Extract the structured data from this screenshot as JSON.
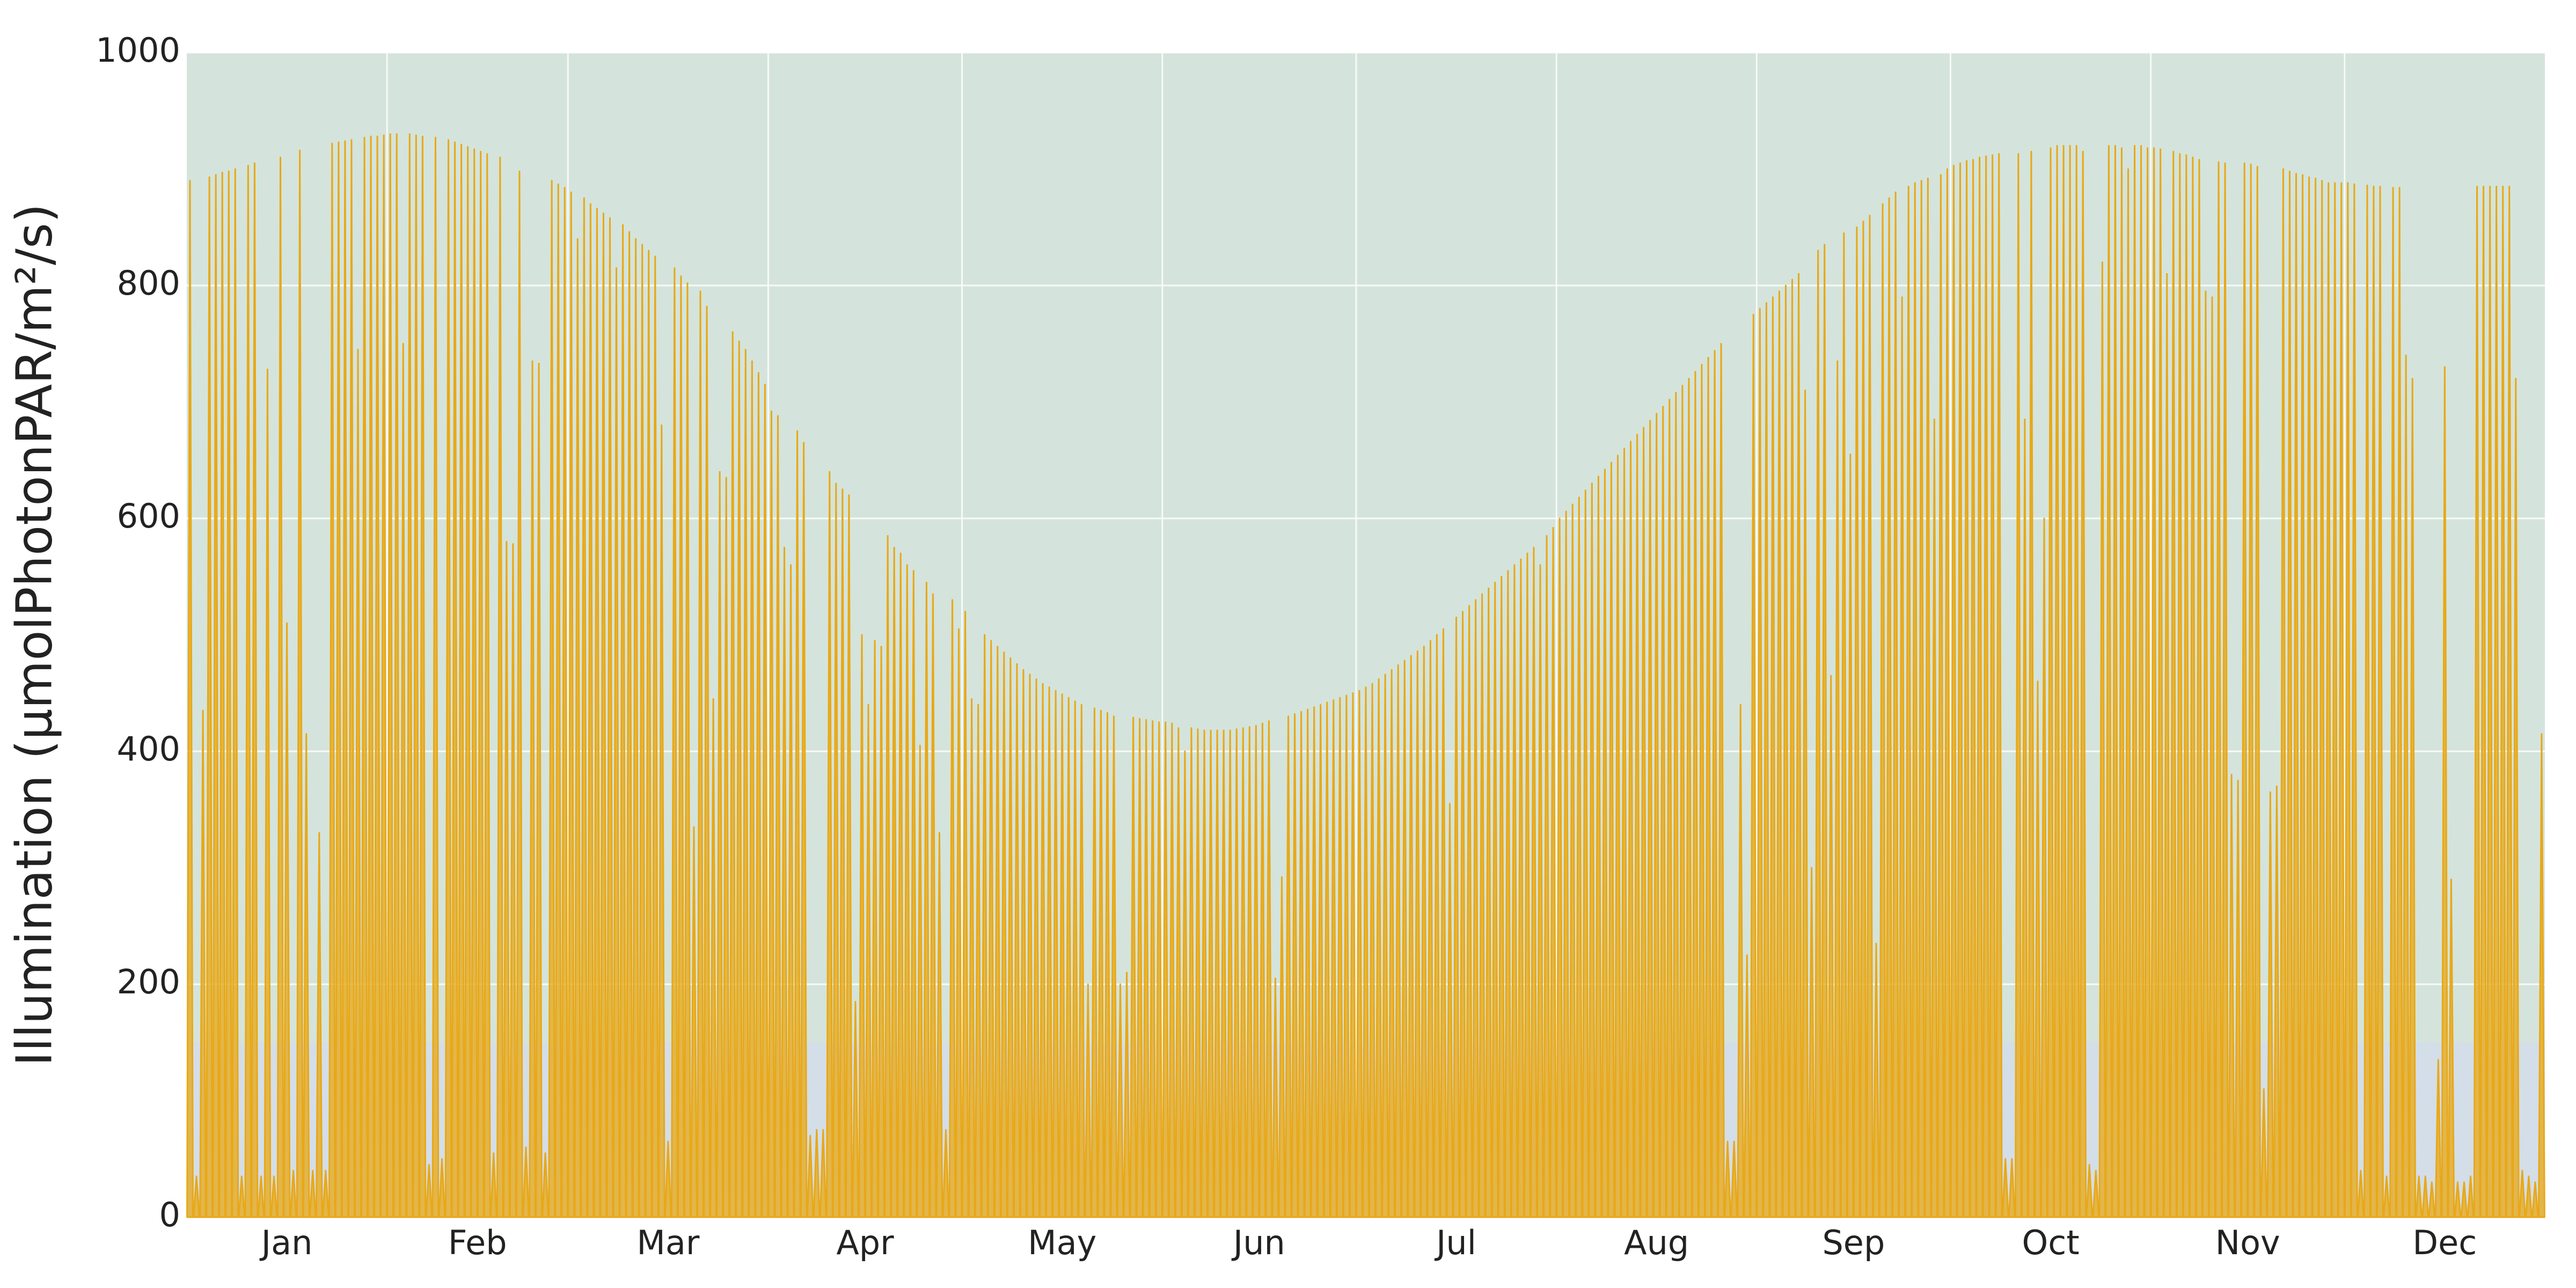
{
  "chart_data": {
    "type": "spike",
    "y_label": "Illumination (µmolPhotonPAR/m²/s)",
    "color": "#e8a817",
    "xlim": [
      0.5,
      365.5
    ],
    "ylim": [
      0,
      1000
    ],
    "yticks": [
      0,
      200,
      400,
      600,
      800,
      1000
    ],
    "xticks": [
      {
        "value": 16,
        "label": "Jan"
      },
      {
        "value": 45.5,
        "label": "Feb"
      },
      {
        "value": 75,
        "label": "Mar"
      },
      {
        "value": 105.5,
        "label": "Apr"
      },
      {
        "value": 136,
        "label": "May"
      },
      {
        "value": 166.5,
        "label": "Jun"
      },
      {
        "value": 197,
        "label": "Jul"
      },
      {
        "value": 228,
        "label": "Aug"
      },
      {
        "value": 258.5,
        "label": "Sep"
      },
      {
        "value": 289,
        "label": "Oct"
      },
      {
        "value": 319.5,
        "label": "Nov"
      },
      {
        "value": 350,
        "label": "Dec"
      }
    ],
    "xgrid": [
      31.5,
      59.5,
      90.5,
      120.5,
      151.5,
      181.5,
      212.5,
      243.5,
      273.5,
      304.5,
      334.5
    ],
    "grid": true,
    "bands": [
      {
        "from": 150,
        "to": 1000,
        "color": "#d4e4dc"
      },
      {
        "from": 0,
        "to": 150,
        "color": "#d3dee9"
      }
    ],
    "x": [
      1,
      2,
      3,
      4,
      5,
      6,
      7,
      8,
      9,
      10,
      11,
      12,
      13,
      14,
      15,
      16,
      17,
      18,
      19,
      20,
      21,
      22,
      23,
      24,
      25,
      26,
      27,
      28,
      29,
      30,
      31,
      32,
      33,
      34,
      35,
      36,
      37,
      38,
      39,
      40,
      41,
      42,
      43,
      44,
      45,
      46,
      47,
      48,
      49,
      50,
      51,
      52,
      53,
      54,
      55,
      56,
      57,
      58,
      59,
      60,
      61,
      62,
      63,
      64,
      65,
      66,
      67,
      68,
      69,
      70,
      71,
      72,
      73,
      74,
      75,
      76,
      77,
      78,
      79,
      80,
      81,
      82,
      83,
      84,
      85,
      86,
      87,
      88,
      89,
      90,
      91,
      92,
      93,
      94,
      95,
      96,
      97,
      98,
      99,
      100,
      101,
      102,
      103,
      104,
      105,
      106,
      107,
      108,
      109,
      110,
      111,
      112,
      113,
      114,
      115,
      116,
      117,
      118,
      119,
      120,
      121,
      122,
      123,
      124,
      125,
      126,
      127,
      128,
      129,
      130,
      131,
      132,
      133,
      134,
      135,
      136,
      137,
      138,
      139,
      140,
      141,
      142,
      143,
      144,
      145,
      146,
      147,
      148,
      149,
      150,
      151,
      152,
      153,
      154,
      155,
      156,
      157,
      158,
      159,
      160,
      161,
      162,
      163,
      164,
      165,
      166,
      167,
      168,
      169,
      170,
      171,
      172,
      173,
      174,
      175,
      176,
      177,
      178,
      179,
      180,
      181,
      182,
      183,
      184,
      185,
      186,
      187,
      188,
      189,
      190,
      191,
      192,
      193,
      194,
      195,
      196,
      197,
      198,
      199,
      200,
      201,
      202,
      203,
      204,
      205,
      206,
      207,
      208,
      209,
      210,
      211,
      212,
      213,
      214,
      215,
      216,
      217,
      218,
      219,
      220,
      221,
      222,
      223,
      224,
      225,
      226,
      227,
      228,
      229,
      230,
      231,
      232,
      233,
      234,
      235,
      236,
      237,
      238,
      239,
      240,
      241,
      242,
      243,
      244,
      245,
      246,
      247,
      248,
      249,
      250,
      251,
      252,
      253,
      254,
      255,
      256,
      257,
      258,
      259,
      260,
      261,
      262,
      263,
      264,
      265,
      266,
      267,
      268,
      269,
      270,
      271,
      272,
      273,
      274,
      275,
      276,
      277,
      278,
      279,
      280,
      281,
      282,
      283,
      284,
      285,
      286,
      287,
      288,
      289,
      290,
      291,
      292,
      293,
      294,
      295,
      296,
      297,
      298,
      299,
      300,
      301,
      302,
      303,
      304,
      305,
      306,
      307,
      308,
      309,
      310,
      311,
      312,
      313,
      314,
      315,
      316,
      317,
      318,
      319,
      320,
      321,
      322,
      323,
      324,
      325,
      326,
      327,
      328,
      329,
      330,
      331,
      332,
      333,
      334,
      335,
      336,
      337,
      338,
      339,
      340,
      341,
      342,
      343,
      344,
      345,
      346,
      347,
      348,
      349,
      350,
      351,
      352,
      353,
      354,
      355,
      356,
      357,
      358,
      359,
      360,
      361,
      362,
      363,
      364,
      365
    ],
    "values": [
      890,
      35,
      435,
      893,
      895,
      897,
      898,
      900,
      35,
      903,
      905,
      35,
      728,
      35,
      910,
      510,
      40,
      916,
      415,
      40,
      330,
      40,
      922,
      923,
      924,
      925,
      745,
      927,
      928,
      928,
      929,
      930,
      930,
      750,
      930,
      929,
      928,
      45,
      927,
      50,
      925,
      923,
      921,
      919,
      917,
      915,
      913,
      55,
      910,
      580,
      578,
      898,
      60,
      735,
      733,
      55,
      890,
      887,
      884,
      880,
      840,
      875,
      870,
      866,
      862,
      858,
      815,
      852,
      846,
      840,
      835,
      830,
      825,
      680,
      65,
      815,
      808,
      802,
      335,
      795,
      782,
      445,
      640,
      635,
      760,
      752,
      745,
      735,
      725,
      715,
      692,
      688,
      575,
      560,
      675,
      665,
      70,
      75,
      75,
      640,
      630,
      625,
      620,
      185,
      500,
      440,
      495,
      490,
      585,
      575,
      570,
      560,
      555,
      405,
      545,
      535,
      330,
      75,
      530,
      505,
      520,
      445,
      440,
      500,
      495,
      490,
      485,
      480,
      475,
      470,
      466,
      462,
      458,
      455,
      452,
      449,
      446,
      443,
      440,
      200,
      437,
      435,
      433,
      430,
      200,
      210,
      429,
      428,
      427,
      426,
      425,
      425,
      424,
      420,
      400,
      420,
      419,
      418,
      418,
      418,
      418,
      418,
      419,
      420,
      421,
      422,
      424,
      426,
      205,
      292,
      430,
      432,
      434,
      436,
      438,
      440,
      442,
      444,
      446,
      448,
      450,
      452,
      455,
      458,
      462,
      466,
      470,
      474,
      478,
      482,
      486,
      490,
      495,
      500,
      505,
      355,
      515,
      520,
      525,
      530,
      535,
      540,
      545,
      550,
      555,
      560,
      565,
      570,
      575,
      560,
      585,
      592,
      600,
      606,
      612,
      618,
      624,
      630,
      636,
      642,
      648,
      654,
      660,
      666,
      672,
      678,
      684,
      690,
      696,
      702,
      708,
      714,
      720,
      726,
      732,
      738,
      744,
      750,
      65,
      65,
      440,
      225,
      775,
      780,
      785,
      790,
      795,
      800,
      805,
      810,
      710,
      300,
      830,
      835,
      465,
      735,
      845,
      655,
      850,
      855,
      860,
      235,
      870,
      875,
      880,
      790,
      885,
      888,
      890,
      892,
      685,
      895,
      900,
      903,
      905,
      907,
      908,
      910,
      911,
      912,
      913,
      50,
      50,
      913,
      685,
      915,
      460,
      600,
      918,
      920,
      920,
      920,
      920,
      915,
      45,
      40,
      820,
      920,
      920,
      918,
      900,
      920,
      920,
      918,
      918,
      917,
      810,
      915,
      913,
      912,
      910,
      908,
      795,
      790,
      906,
      905,
      380,
      375,
      905,
      904,
      902,
      110,
      365,
      370,
      900,
      898,
      896,
      895,
      893,
      892,
      890,
      888,
      888,
      888,
      888,
      887,
      40,
      886,
      885,
      885,
      35,
      884,
      884,
      740,
      720,
      35,
      35,
      30,
      135,
      730,
      290,
      30,
      30,
      35,
      885,
      885,
      885,
      885,
      885,
      885,
      720,
      40,
      35,
      30,
      415
    ]
  }
}
